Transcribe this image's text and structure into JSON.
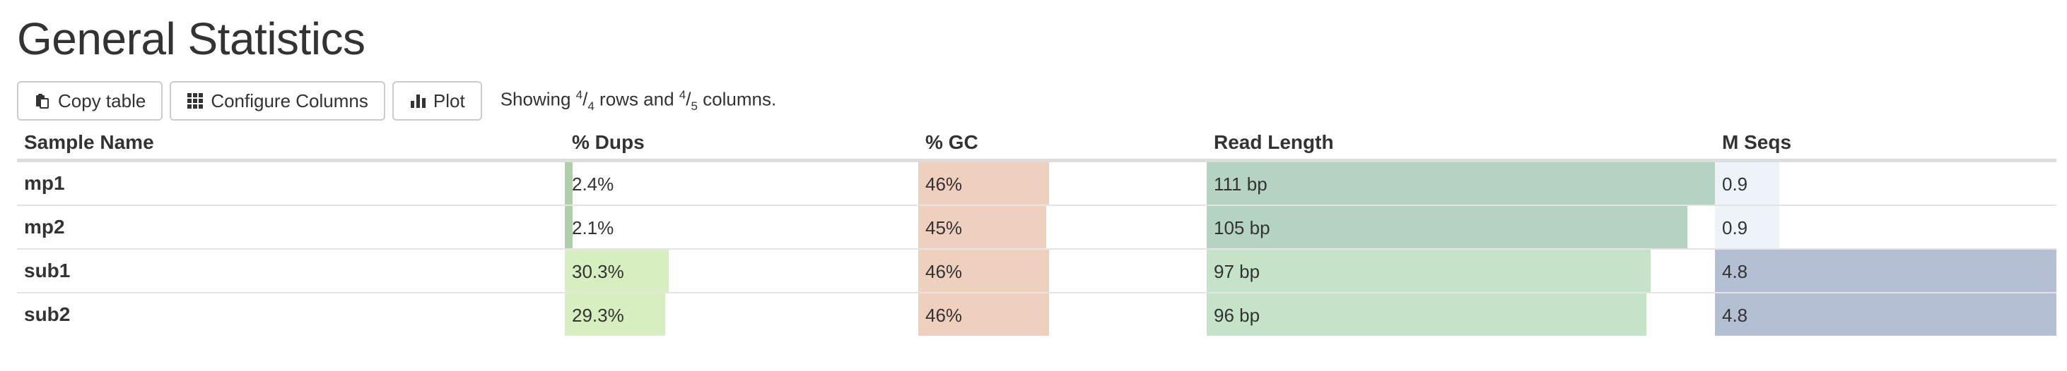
{
  "title": "General Statistics",
  "toolbar": {
    "copy_label": "Copy table",
    "configure_label": "Configure Columns",
    "plot_label": "Plot",
    "status": {
      "prefix": "Showing ",
      "rows_shown": "4",
      "rows_total": "4",
      "rows_word": " rows and ",
      "cols_shown": "4",
      "cols_total": "5",
      "cols_word": " columns."
    }
  },
  "columns": [
    {
      "key": "sample",
      "label": "Sample Name"
    },
    {
      "key": "dups",
      "label": "% Dups",
      "color": "#d7efc0",
      "dark": "#aecfa8",
      "max": 100
    },
    {
      "key": "gc",
      "label": "% GC",
      "color": "#efcfbe",
      "max": 100
    },
    {
      "key": "len",
      "label": "Read Length",
      "color": "#c5e3c9",
      "dark": "#b5d3c2",
      "max": 111
    },
    {
      "key": "seqs",
      "label": "M Seqs",
      "color": "#b5bfd4",
      "light": "#eef2f9",
      "max": 4.8
    }
  ],
  "rows": [
    {
      "sample": "mp1",
      "dups_text": "2.4%",
      "dups": 2.4,
      "gc_text": "46%",
      "gc": 46,
      "len_text": "111 bp",
      "len": 111,
      "seqs_text": "0.9",
      "seqs": 0.9
    },
    {
      "sample": "mp2",
      "dups_text": "2.1%",
      "dups": 2.1,
      "gc_text": "45%",
      "gc": 45,
      "len_text": "105 bp",
      "len": 105,
      "seqs_text": "0.9",
      "seqs": 0.9
    },
    {
      "sample": "sub1",
      "dups_text": "30.3%",
      "dups": 30.3,
      "gc_text": "46%",
      "gc": 46,
      "len_text": "97 bp",
      "len": 97,
      "seqs_text": "4.8",
      "seqs": 4.8
    },
    {
      "sample": "sub2",
      "dups_text": "29.3%",
      "dups": 29.3,
      "gc_text": "46%",
      "gc": 46,
      "len_text": "96 bp",
      "len": 96,
      "seqs_text": "4.8",
      "seqs": 4.8
    }
  ]
}
